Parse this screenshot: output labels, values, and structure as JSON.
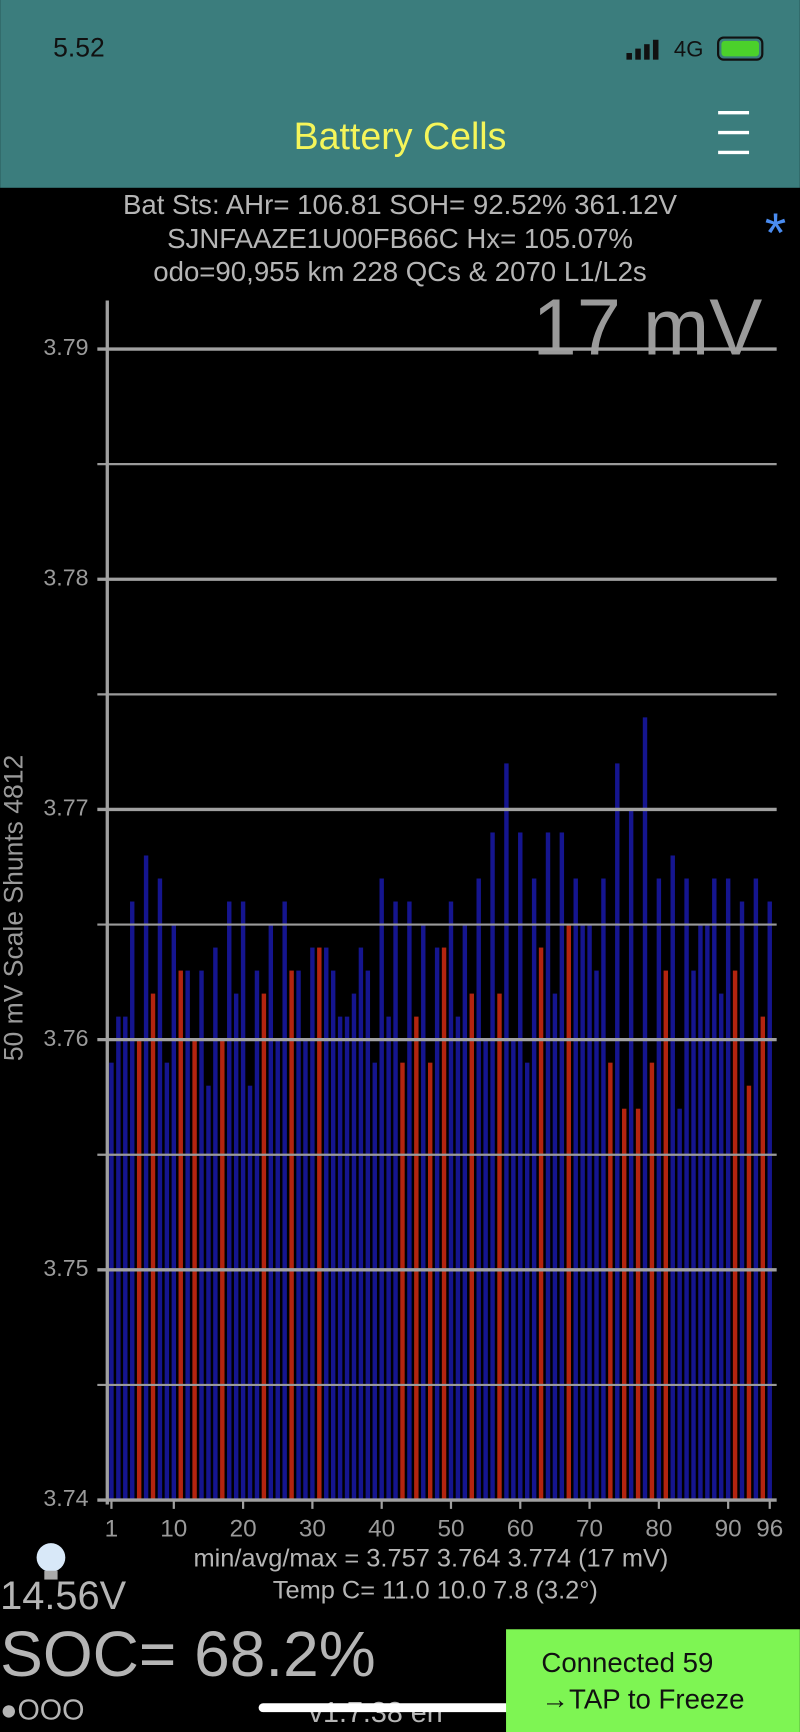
{
  "status_bar": {
    "time": "5.52",
    "network": "4G"
  },
  "header": {
    "title": "Battery Cells"
  },
  "info": {
    "lines": [
      "Bat Sts: AHr= 106.81 SOH= 92.52% 361.12V",
      "SJNFAAZE1U00FB66C   Hx= 105.07%",
      "odo=90,955 km 228 QCs & 2070 L1/L2s"
    ],
    "marker": "*"
  },
  "chart_data": {
    "type": "bar",
    "annotation": "17 mV",
    "y_label": "50 mV Scale   Shunts 4812",
    "x": [
      1,
      2,
      3,
      4,
      5,
      6,
      7,
      8,
      9,
      10,
      11,
      12,
      13,
      14,
      15,
      16,
      17,
      18,
      19,
      20,
      21,
      22,
      23,
      24,
      25,
      26,
      27,
      28,
      29,
      30,
      31,
      32,
      33,
      34,
      35,
      36,
      37,
      38,
      39,
      40,
      41,
      42,
      43,
      44,
      45,
      46,
      47,
      48,
      49,
      50,
      51,
      52,
      53,
      54,
      55,
      56,
      57,
      58,
      59,
      60,
      61,
      62,
      63,
      64,
      65,
      66,
      67,
      68,
      69,
      70,
      71,
      72,
      73,
      74,
      75,
      76,
      77,
      78,
      79,
      80,
      81,
      82,
      83,
      84,
      85,
      86,
      87,
      88,
      89,
      90,
      91,
      92,
      93,
      94,
      95,
      96
    ],
    "values": [
      3.759,
      3.761,
      3.761,
      3.766,
      3.76,
      3.768,
      3.762,
      3.767,
      3.759,
      3.765,
      3.763,
      3.763,
      3.76,
      3.763,
      3.758,
      3.764,
      3.76,
      3.766,
      3.762,
      3.766,
      3.758,
      3.763,
      3.762,
      3.765,
      3.76,
      3.766,
      3.763,
      3.763,
      3.76,
      3.764,
      3.764,
      3.764,
      3.763,
      3.761,
      3.761,
      3.762,
      3.764,
      3.763,
      3.759,
      3.767,
      3.761,
      3.766,
      3.759,
      3.766,
      3.761,
      3.765,
      3.759,
      3.764,
      3.764,
      3.766,
      3.761,
      3.765,
      3.762,
      3.767,
      3.76,
      3.769,
      3.762,
      3.772,
      3.76,
      3.769,
      3.759,
      3.767,
      3.764,
      3.769,
      3.762,
      3.769,
      3.765,
      3.767,
      3.765,
      3.765,
      3.763,
      3.767,
      3.759,
      3.772,
      3.757,
      3.77,
      3.757,
      3.774,
      3.759,
      3.767,
      3.763,
      3.768,
      3.757,
      3.767,
      3.763,
      3.765,
      3.765,
      3.767,
      3.762,
      3.767,
      3.763,
      3.766,
      3.758,
      3.767,
      3.761,
      3.766
    ],
    "colors": [
      "#15158f",
      "#15158f",
      "#15158f",
      "#15158f",
      "#b3240f",
      "#15158f",
      "#b3240f",
      "#15158f",
      "#15158f",
      "#15158f",
      "#b3240f",
      "#15158f",
      "#b3240f",
      "#15158f",
      "#15158f",
      "#15158f",
      "#b3240f",
      "#15158f",
      "#15158f",
      "#15158f",
      "#15158f",
      "#15158f",
      "#b3240f",
      "#15158f",
      "#15158f",
      "#15158f",
      "#b3240f",
      "#15158f",
      "#15158f",
      "#15158f",
      "#b3240f",
      "#15158f",
      "#15158f",
      "#15158f",
      "#15158f",
      "#15158f",
      "#15158f",
      "#15158f",
      "#15158f",
      "#15158f",
      "#15158f",
      "#15158f",
      "#b3240f",
      "#15158f",
      "#b3240f",
      "#15158f",
      "#b3240f",
      "#15158f",
      "#b3240f",
      "#15158f",
      "#15158f",
      "#15158f",
      "#b3240f",
      "#15158f",
      "#15158f",
      "#15158f",
      "#b3240f",
      "#15158f",
      "#15158f",
      "#15158f",
      "#15158f",
      "#15158f",
      "#b3240f",
      "#15158f",
      "#15158f",
      "#15158f",
      "#b3240f",
      "#15158f",
      "#15158f",
      "#15158f",
      "#15158f",
      "#15158f",
      "#b3240f",
      "#15158f",
      "#b3240f",
      "#15158f",
      "#b3240f",
      "#15158f",
      "#b3240f",
      "#15158f",
      "#b3240f",
      "#15158f",
      "#15158f",
      "#15158f",
      "#15158f",
      "#15158f",
      "#15158f",
      "#15158f",
      "#15158f",
      "#15158f",
      "#b3240f",
      "#15158f",
      "#b3240f",
      "#15158f",
      "#b3240f",
      "#15158f"
    ],
    "xlim": [
      0.4,
      97.0
    ],
    "xticks": [
      1,
      10,
      20,
      30,
      40,
      50,
      60,
      70,
      80,
      90,
      96
    ],
    "ylim": [
      3.74,
      3.79
    ],
    "yticks": [
      3.74,
      3.75,
      3.76,
      3.77,
      3.78,
      3.79
    ],
    "minor_yticks": [
      3.745,
      3.755,
      3.765,
      3.775,
      3.785
    ],
    "grid": true
  },
  "stats": {
    "minmax": "min/avg/max = 3.757  3.764  3.774   (17 mV)",
    "temp": "Temp C= 11.0   10.0   7.8   (3.2°)"
  },
  "footer": {
    "voltage": "14.56V",
    "soc": "SOC= 68.2%",
    "dots": "●OOO",
    "version": "v1.7.38 en",
    "button": [
      "Connected 59",
      "→TAP to Freeze"
    ]
  }
}
